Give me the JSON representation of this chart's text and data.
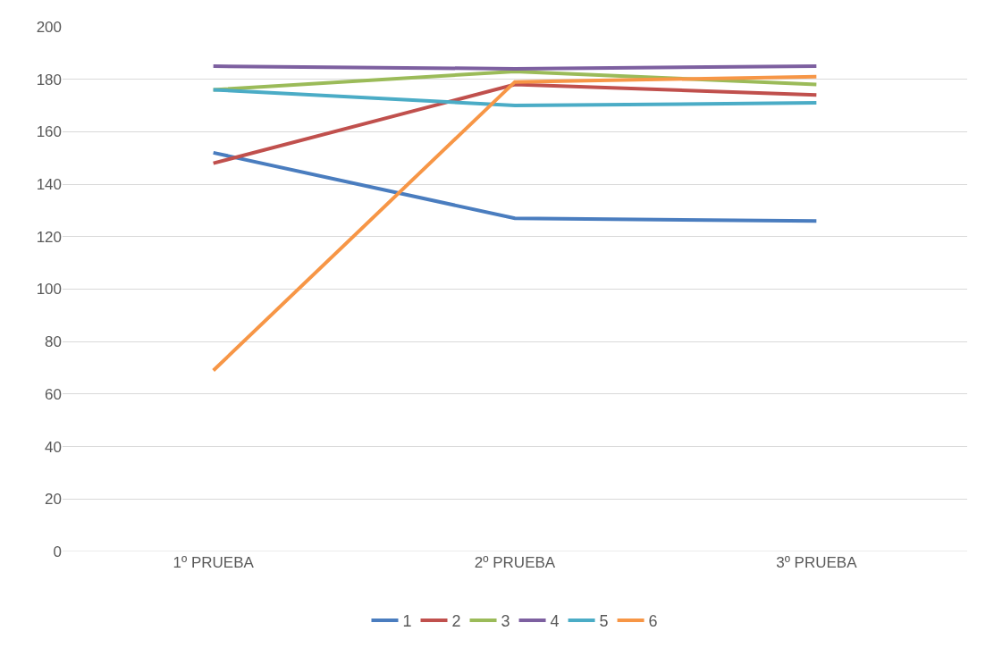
{
  "chart_data": {
    "type": "line",
    "categories": [
      "1º PRUEBA",
      "2º PRUEBA",
      "3º PRUEBA"
    ],
    "series": [
      {
        "name": "1",
        "color": "#4a7dbf",
        "values": [
          152,
          127,
          126
        ]
      },
      {
        "name": "2",
        "color": "#c0504d",
        "values": [
          148,
          178,
          174
        ]
      },
      {
        "name": "3",
        "color": "#9bbb59",
        "values": [
          176,
          183,
          178
        ]
      },
      {
        "name": "4",
        "color": "#7d60a0",
        "values": [
          185,
          184,
          185
        ]
      },
      {
        "name": "5",
        "color": "#4bacc6",
        "values": [
          176,
          170,
          171
        ]
      },
      {
        "name": "6",
        "color": "#f79646",
        "values": [
          69,
          179,
          181
        ]
      }
    ],
    "ylim": [
      0,
      200
    ],
    "yticks": [
      0,
      20,
      40,
      60,
      80,
      100,
      120,
      140,
      160,
      180,
      200
    ],
    "grid": "y",
    "legend": "bottom",
    "marker": "none",
    "line_style": "solid"
  }
}
